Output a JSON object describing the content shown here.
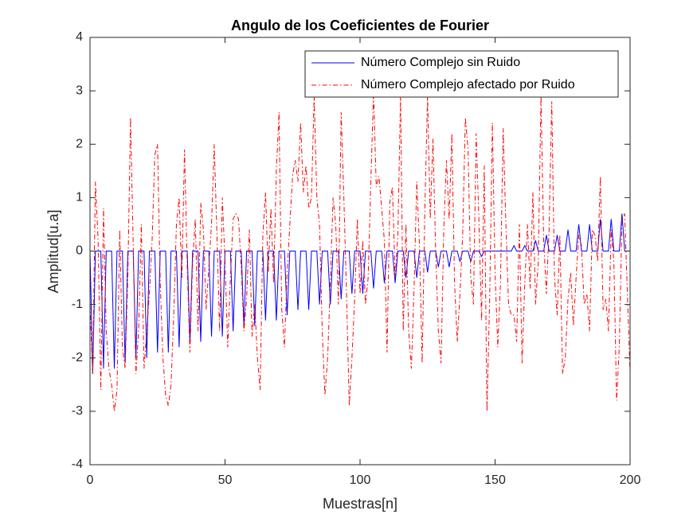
{
  "chart_data": {
    "type": "line",
    "title": "Angulo de los Coeficientes de Fourier",
    "xlabel": "Muestras[n]",
    "ylabel": "Amplitud[u.a]",
    "xlim": [
      0,
      200
    ],
    "ylim": [
      -4,
      4
    ],
    "xticks": [
      0,
      50,
      100,
      150,
      200
    ],
    "yticks": [
      -4,
      -3,
      -2,
      -1,
      0,
      1,
      2,
      3,
      4
    ],
    "legend": "northeast",
    "x": [
      0,
      1,
      2,
      3,
      4,
      5,
      6,
      7,
      8,
      9,
      10,
      11,
      12,
      13,
      14,
      15,
      16,
      17,
      18,
      19,
      20,
      21,
      22,
      23,
      24,
      25,
      26,
      27,
      28,
      29,
      30,
      31,
      32,
      33,
      34,
      35,
      36,
      37,
      38,
      39,
      40,
      41,
      42,
      43,
      44,
      45,
      46,
      47,
      48,
      49,
      50,
      51,
      52,
      53,
      54,
      55,
      56,
      57,
      58,
      59,
      60,
      61,
      62,
      63,
      64,
      65,
      66,
      67,
      68,
      69,
      70,
      71,
      72,
      73,
      74,
      75,
      76,
      77,
      78,
      79,
      80,
      81,
      82,
      83,
      84,
      85,
      86,
      87,
      88,
      89,
      90,
      91,
      92,
      93,
      94,
      95,
      96,
      97,
      98,
      99,
      100,
      101,
      102,
      103,
      104,
      105,
      106,
      107,
      108,
      109,
      110,
      111,
      112,
      113,
      114,
      115,
      116,
      117,
      118,
      119,
      120,
      121,
      122,
      123,
      124,
      125,
      126,
      127,
      128,
      129,
      130,
      131,
      132,
      133,
      134,
      135,
      136,
      137,
      138,
      139,
      140,
      141,
      142,
      143,
      144,
      145,
      146,
      147,
      148,
      149,
      150,
      151,
      152,
      153,
      154,
      155,
      156,
      157,
      158,
      159,
      160,
      161,
      162,
      163,
      164,
      165,
      166,
      167,
      168,
      169,
      170,
      171,
      172,
      173,
      174,
      175,
      176,
      177,
      178,
      179,
      180,
      181,
      182,
      183,
      184,
      185,
      186,
      187,
      188,
      189,
      190,
      191,
      192,
      193,
      194,
      195,
      196,
      197,
      198,
      199,
      200
    ],
    "series": [
      {
        "name": "Número Complejo sin Ruido",
        "color": "#0000ff",
        "style": "solid",
        "values": [
          0,
          -2.3,
          0,
          0,
          0,
          -2.2,
          0,
          0,
          0,
          -2.2,
          0,
          0,
          0,
          -2.1,
          0,
          0,
          0,
          -2.0,
          0,
          0,
          0,
          -2.0,
          0,
          0,
          0,
          -1.9,
          0,
          0,
          0,
          -1.9,
          0,
          0,
          0,
          -1.8,
          0,
          0,
          0,
          -1.7,
          0,
          0,
          0,
          -1.7,
          0,
          0,
          0,
          -1.6,
          0,
          0,
          0,
          -1.6,
          0,
          0,
          0,
          -1.5,
          0,
          0,
          0,
          -1.4,
          0,
          0,
          0,
          -1.4,
          0,
          0,
          0,
          -1.3,
          0,
          0,
          0,
          -1.3,
          0,
          0,
          0,
          -1.2,
          0,
          0,
          0,
          -1.1,
          0,
          0,
          0,
          -1.1,
          0,
          0,
          0,
          -1.0,
          0,
          0,
          0,
          -1.0,
          0,
          0,
          0,
          -0.9,
          0,
          0,
          0,
          -0.8,
          0,
          0,
          0,
          -0.8,
          0,
          0,
          0,
          -0.7,
          0,
          0,
          0,
          -0.6,
          0,
          0,
          0,
          -0.6,
          0,
          0,
          0,
          -0.5,
          0,
          0,
          0,
          -0.5,
          0,
          0,
          0,
          -0.4,
          0,
          0,
          0,
          -0.3,
          0,
          0,
          0,
          -0.3,
          0,
          0,
          0,
          -0.2,
          0,
          0,
          0,
          -0.2,
          0,
          0,
          0,
          -0.1,
          0,
          0,
          0,
          0,
          0,
          0,
          0,
          0,
          0,
          0,
          0,
          0.1,
          0,
          0,
          0,
          0.1,
          0,
          0,
          0,
          0.2,
          0,
          0,
          0,
          0.3,
          0,
          0,
          0,
          0.3,
          0,
          0,
          0,
          0.4,
          0,
          0,
          0,
          0.5,
          0,
          0,
          0,
          0.5,
          0,
          0,
          0,
          0.6,
          0,
          0,
          0,
          0.6,
          0,
          0,
          0,
          0.7,
          0,
          0,
          0
        ]
      },
      {
        "name": "Número Complejo afectado por Ruido",
        "color": "#ff0000",
        "style": "dashdot",
        "values": [
          -1.0,
          -2.3,
          1.3,
          0.2,
          -2.6,
          0.8,
          -1.5,
          -2.2,
          -2.5,
          -3.0,
          -2.6,
          0.4,
          -1.8,
          -2.2,
          -0.5,
          2.5,
          0.1,
          -2.3,
          -1.5,
          0.5,
          -2.2,
          -1.5,
          -0.8,
          0.2,
          1.8,
          2.0,
          -0.6,
          -2.0,
          -2.7,
          -2.9,
          -2.5,
          -1.2,
          0.5,
          1.0,
          -0.5,
          1.9,
          -0.3,
          -1.9,
          -0.2,
          0.6,
          -1.5,
          0.9,
          0.4,
          -1.1,
          -0.3,
          0.5,
          2.0,
          0.3,
          -1.5,
          1.0,
          -0.2,
          -1.8,
          -0.5,
          0.6,
          0.7,
          0.6,
          -0.3,
          -1.5,
          -0.9,
          0.4,
          -1.6,
          -1.0,
          -2.0,
          -2.6,
          0.3,
          1.1,
          -0.4,
          0.8,
          -0.6,
          1.5,
          2.6,
          -1.1,
          -1.8,
          -0.4,
          0.5,
          1.4,
          1.7,
          1.3,
          2.4,
          1.1,
          1.6,
          0.8,
          1.0,
          2.9,
          1.0,
          0.5,
          -1.5,
          -2.7,
          -2.0,
          -0.6,
          1.0,
          0.5,
          -1.0,
          2.6,
          1.0,
          -0.8,
          -2.9,
          -2.0,
          -0.9,
          0.6,
          -0.8,
          0.2,
          -1.0,
          -0.5,
          1.3,
          3.0,
          1.2,
          1.4,
          0.8,
          0.2,
          -1.9,
          0.9,
          1.2,
          -0.5,
          0.3,
          2.9,
          -1.5,
          0.5,
          -1.5,
          -2.2,
          -0.7,
          1.3,
          0.1,
          -2.1,
          0.8,
          2.9,
          0.6,
          2.1,
          0.0,
          -1.5,
          -2.1,
          0.4,
          1.7,
          0.6,
          2.2,
          -0.6,
          -1.7,
          -0.8,
          0.3,
          2.5,
          1.9,
          -0.5,
          -1.0,
          2.2,
          0.6,
          -1.3,
          1.6,
          -3.0,
          -0.9,
          2.4,
          -0.4,
          -1.8,
          -0.6,
          2.3,
          0.5,
          -1.0,
          -1.2,
          -1.2,
          -1.7,
          0.5,
          -2.1,
          -0.6,
          0.5,
          -0.7,
          1.1,
          -1.0,
          -0.2,
          2.9,
          0.2,
          -0.8,
          0.4,
          2.8,
          -0.5,
          -1.2,
          0.3,
          -2.3,
          -2.0,
          -0.9,
          -0.4,
          -1.4,
          -0.5,
          0.3,
          0.1,
          -1.0,
          -0.8,
          -1.5,
          0.4,
          0.3,
          -0.2,
          1.4,
          -1.1,
          -0.9,
          -1.5,
          0.4,
          -0.2,
          -2.8,
          -1.8,
          0.6,
          0.7,
          -0.8,
          -2.3
        ]
      }
    ]
  }
}
